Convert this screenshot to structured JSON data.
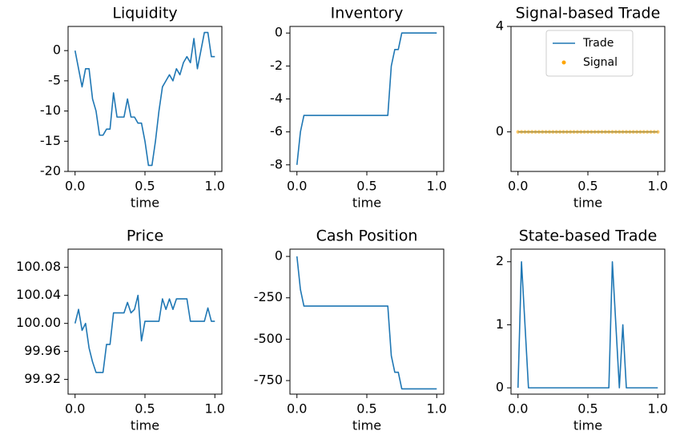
{
  "chart_data": [
    {
      "type": "line",
      "title": "Liquidity",
      "xlabel": "time",
      "color": "#1f77b4",
      "x": [
        0,
        0.025,
        0.05,
        0.075,
        0.1,
        0.125,
        0.15,
        0.175,
        0.2,
        0.225,
        0.25,
        0.275,
        0.3,
        0.325,
        0.35,
        0.375,
        0.4,
        0.425,
        0.45,
        0.475,
        0.5,
        0.525,
        0.55,
        0.575,
        0.6,
        0.625,
        0.65,
        0.675,
        0.7,
        0.725,
        0.75,
        0.775,
        0.8,
        0.825,
        0.85,
        0.875,
        0.9,
        0.925,
        0.95,
        0.975,
        1
      ],
      "values": [
        0,
        -3,
        -6,
        -3,
        -3,
        -8,
        -10,
        -14,
        -14,
        -13,
        -13,
        -7,
        -11,
        -11,
        -11,
        -8,
        -11,
        -11,
        -12,
        -12,
        -15,
        -19,
        -19,
        -15,
        -10,
        -6,
        -5,
        -4,
        -5,
        -3,
        -4,
        -2,
        -1,
        -2,
        2,
        -3,
        0,
        3,
        3,
        -1,
        -1
      ],
      "xlim": [
        -0.05,
        1.05
      ],
      "xticks": [
        {
          "value": 0,
          "label": "0.0"
        },
        0.5,
        {
          "value": 1,
          "label": "1.0"
        }
      ],
      "ylim": [
        -20,
        4
      ],
      "yticks": [
        -20,
        -15,
        -10,
        -5,
        0
      ]
    },
    {
      "type": "line",
      "title": "Inventory",
      "xlabel": "time",
      "color": "#1f77b4",
      "x": [
        0,
        0.025,
        0.05,
        0.075,
        0.1,
        0.125,
        0.15,
        0.175,
        0.2,
        0.225,
        0.25,
        0.275,
        0.3,
        0.325,
        0.35,
        0.375,
        0.4,
        0.425,
        0.45,
        0.475,
        0.5,
        0.525,
        0.55,
        0.575,
        0.6,
        0.625,
        0.65,
        0.675,
        0.7,
        0.725,
        0.75,
        0.775,
        0.8,
        0.825,
        0.85,
        0.875,
        0.9,
        0.925,
        0.95,
        0.975,
        1
      ],
      "values": [
        -8,
        -6,
        -5,
        -5,
        -5,
        -5,
        -5,
        -5,
        -5,
        -5,
        -5,
        -5,
        -5,
        -5,
        -5,
        -5,
        -5,
        -5,
        -5,
        -5,
        -5,
        -5,
        -5,
        -5,
        -5,
        -5,
        -5,
        -2,
        -1,
        -1,
        0,
        0,
        0,
        0,
        0,
        0,
        0,
        0,
        0,
        0,
        0
      ],
      "xlim": [
        -0.05,
        1.05
      ],
      "xticks": [
        {
          "value": 0,
          "label": "0.0"
        },
        0.5,
        {
          "value": 1,
          "label": "1.0"
        }
      ],
      "ylim": [
        -8.4,
        0.4
      ],
      "yticks": [
        -8,
        -6,
        -4,
        -2,
        0
      ]
    },
    {
      "type": "line",
      "title": "Signal-based Trade",
      "xlabel": "time",
      "legend": "upper center",
      "x": [
        0,
        0.025,
        0.05,
        0.075,
        0.1,
        0.125,
        0.15,
        0.175,
        0.2,
        0.225,
        0.25,
        0.275,
        0.3,
        0.325,
        0.35,
        0.375,
        0.4,
        0.425,
        0.45,
        0.475,
        0.5,
        0.525,
        0.55,
        0.575,
        0.6,
        0.625,
        0.65,
        0.675,
        0.7,
        0.725,
        0.75,
        0.775,
        0.8,
        0.825,
        0.85,
        0.875,
        0.9,
        0.925,
        0.95,
        0.975,
        1
      ],
      "series": [
        {
          "name": "Trade",
          "color": "#1f77b4",
          "values": [
            0,
            0,
            0,
            0,
            0,
            0,
            0,
            0,
            0,
            0,
            0,
            0,
            0,
            0,
            0,
            0,
            0,
            0,
            0,
            0,
            0,
            0,
            0,
            0,
            0,
            0,
            0,
            0,
            0,
            0,
            0,
            0,
            0,
            0,
            0,
            0,
            0,
            0,
            0,
            0,
            0
          ]
        },
        {
          "name": "Signal",
          "color": "orange",
          "marker": "dot",
          "values": [
            0,
            0,
            0,
            0,
            0,
            0,
            0,
            0,
            0,
            0,
            0,
            0,
            0,
            0,
            0,
            0,
            0,
            0,
            0,
            0,
            0,
            0,
            0,
            0,
            0,
            0,
            0,
            0,
            0,
            0,
            0,
            0,
            0,
            0,
            0,
            0,
            0,
            0,
            0,
            0,
            0
          ]
        }
      ],
      "xlim": [
        -0.05,
        1.05
      ],
      "xticks": [
        {
          "value": 0,
          "label": "0.0"
        },
        0.5,
        {
          "value": 1,
          "label": "1.0"
        }
      ],
      "ylim": [
        -1.5,
        4
      ],
      "yticks": [
        0,
        4
      ]
    },
    {
      "type": "line",
      "title": "Price",
      "xlabel": "time",
      "color": "#1f77b4",
      "x": [
        0,
        0.025,
        0.05,
        0.075,
        0.1,
        0.125,
        0.15,
        0.175,
        0.2,
        0.225,
        0.25,
        0.275,
        0.3,
        0.325,
        0.35,
        0.375,
        0.4,
        0.425,
        0.45,
        0.475,
        0.5,
        0.525,
        0.55,
        0.575,
        0.6,
        0.625,
        0.65,
        0.675,
        0.7,
        0.725,
        0.75,
        0.775,
        0.8,
        0.825,
        0.85,
        0.875,
        0.9,
        0.925,
        0.95,
        0.975,
        1
      ],
      "values": [
        100.0,
        100.02,
        99.99,
        100.0,
        99.965,
        99.945,
        99.93,
        99.93,
        99.93,
        99.97,
        99.97,
        100.015,
        100.015,
        100.015,
        100.015,
        100.03,
        100.015,
        100.02,
        100.04,
        99.975,
        100.003,
        100.003,
        100.003,
        100.003,
        100.003,
        100.035,
        100.02,
        100.035,
        100.02,
        100.035,
        100.035,
        100.035,
        100.035,
        100.003,
        100.003,
        100.003,
        100.003,
        100.003,
        100.022,
        100.003,
        100.003
      ],
      "xlim": [
        -0.05,
        1.05
      ],
      "xticks": [
        {
          "value": 0,
          "label": "0.0"
        },
        0.5,
        {
          "value": 1,
          "label": "1.0"
        }
      ],
      "ylim": [
        99.899,
        100.106
      ],
      "yticks": [
        99.92,
        99.96,
        {
          "value": 100,
          "label": "100.00"
        },
        100.04,
        100.08
      ]
    },
    {
      "type": "line",
      "title": "Cash Position",
      "xlabel": "time",
      "color": "#1f77b4",
      "x": [
        0,
        0.025,
        0.05,
        0.075,
        0.1,
        0.125,
        0.15,
        0.175,
        0.2,
        0.225,
        0.25,
        0.275,
        0.3,
        0.325,
        0.35,
        0.375,
        0.4,
        0.425,
        0.45,
        0.475,
        0.5,
        0.525,
        0.55,
        0.575,
        0.6,
        0.625,
        0.65,
        0.675,
        0.7,
        0.725,
        0.75,
        0.775,
        0.8,
        0.825,
        0.85,
        0.875,
        0.9,
        0.925,
        0.95,
        0.975,
        1
      ],
      "values": [
        0,
        -200,
        -300,
        -300,
        -300,
        -300,
        -300,
        -300,
        -300,
        -300,
        -300,
        -300,
        -300,
        -300,
        -300,
        -300,
        -300,
        -300,
        -300,
        -300,
        -300,
        -300,
        -300,
        -300,
        -300,
        -300,
        -300,
        -600,
        -700,
        -700,
        -800,
        -800,
        -800,
        -800,
        -800,
        -800,
        -800,
        -800,
        -800,
        -800,
        -800
      ],
      "xlim": [
        -0.05,
        1.05
      ],
      "xticks": [
        {
          "value": 0,
          "label": "0.0"
        },
        0.5,
        {
          "value": 1,
          "label": "1.0"
        }
      ],
      "ylim": [
        -832,
        44
      ],
      "yticks": [
        -750,
        -500,
        -250,
        0
      ]
    },
    {
      "type": "line",
      "title": "State-based Trade",
      "xlabel": "time",
      "color": "#1f77b4",
      "x": [
        0,
        0.025,
        0.05,
        0.075,
        0.1,
        0.125,
        0.15,
        0.175,
        0.2,
        0.225,
        0.25,
        0.275,
        0.3,
        0.325,
        0.35,
        0.375,
        0.4,
        0.425,
        0.45,
        0.475,
        0.5,
        0.525,
        0.55,
        0.575,
        0.6,
        0.625,
        0.65,
        0.675,
        0.7,
        0.725,
        0.75,
        0.775,
        0.8,
        0.825,
        0.85,
        0.875,
        0.9,
        0.925,
        0.95,
        0.975,
        1
      ],
      "values": [
        0,
        2,
        1,
        0,
        0,
        0,
        0,
        0,
        0,
        0,
        0,
        0,
        0,
        0,
        0,
        0,
        0,
        0,
        0,
        0,
        0,
        0,
        0,
        0,
        0,
        0,
        0,
        2,
        1,
        0,
        1,
        0,
        0,
        0,
        0,
        0,
        0,
        0,
        0,
        0,
        0
      ],
      "xlim": [
        -0.05,
        1.05
      ],
      "xticks": [
        {
          "value": 0,
          "label": "0.0"
        },
        0.5,
        {
          "value": 1,
          "label": "1.0"
        }
      ],
      "ylim": [
        -0.1,
        2.2
      ],
      "yticks": [
        0,
        1,
        2
      ]
    }
  ]
}
